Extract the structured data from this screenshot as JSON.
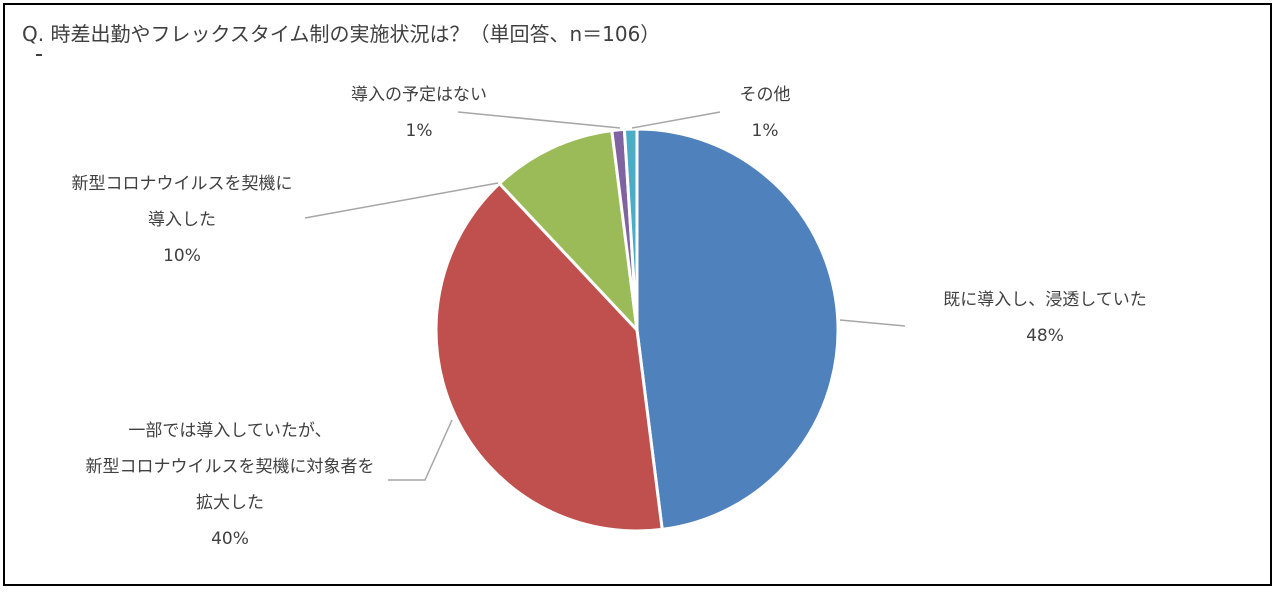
{
  "title": "Q.  時差出勤やフレックスタイム制の実施状況は？（単回答、n＝106）",
  "chart_data": {
    "type": "pie",
    "title": "Q.  時差出勤やフレックスタイム制の実施状況は？（単回答、n＝106）",
    "slices": [
      {
        "label_lines": [
          "既に導入し、浸透していた"
        ],
        "percent_label": "48%",
        "value": 48,
        "color": "#4F81BD"
      },
      {
        "label_lines": [
          "一部では導入していたが、",
          "新型コロナウイルスを契機に対象者を",
          "拡大した"
        ],
        "percent_label": "40%",
        "value": 40,
        "color": "#C0504D"
      },
      {
        "label_lines": [
          "新型コロナウイルスを契機に",
          "導入した"
        ],
        "percent_label": "10%",
        "value": 10,
        "color": "#9BBB59"
      },
      {
        "label_lines": [
          "導入の予定はない"
        ],
        "percent_label": "1%",
        "value": 1,
        "color": "#8064A2"
      },
      {
        "label_lines": [
          "その他"
        ],
        "percent_label": "1%",
        "value": 1,
        "color": "#4BACC6"
      }
    ]
  }
}
